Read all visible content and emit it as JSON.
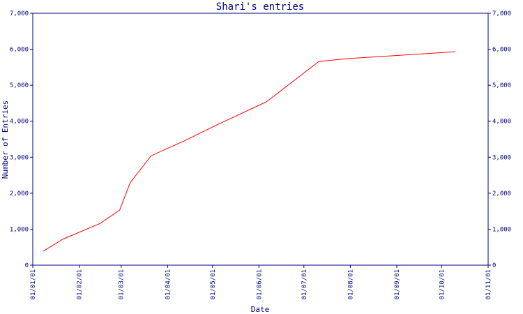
{
  "chart_data": {
    "type": "line",
    "title": "Shari's entries",
    "x_label": "Date",
    "y_label": "Number of Entries",
    "x": [
      "2001-01-08",
      "2001-01-21",
      "2001-02-15",
      "2001-02-28",
      "2001-03-07",
      "2001-03-21",
      "2001-04-12",
      "2001-05-03",
      "2001-06-06",
      "2001-07-11",
      "2001-07-30",
      "2001-10-10"
    ],
    "series": [
      {
        "color": "#ff0000",
        "values": [
          390,
          720,
          1160,
          1530,
          2290,
          3040,
          3450,
          3880,
          4540,
          5660,
          5740,
          5930
        ]
      }
    ],
    "xlim": [
      "2001-01-01",
      "2001-11-01"
    ],
    "xticks": [
      {
        "value": "2001-01-01",
        "label": "01/01/01"
      },
      {
        "value": "2001-02-01",
        "label": "01/02/01"
      },
      {
        "value": "2001-03-01",
        "label": "01/03/01"
      },
      {
        "value": "2001-04-01",
        "label": "01/04/01"
      },
      {
        "value": "2001-05-01",
        "label": "01/05/01"
      },
      {
        "value": "2001-06-01",
        "label": "01/06/01"
      },
      {
        "value": "2001-07-01",
        "label": "01/07/01"
      },
      {
        "value": "2001-08-01",
        "label": "01/08/01"
      },
      {
        "value": "2001-09-01",
        "label": "01/09/01"
      },
      {
        "value": "2001-10-01",
        "label": "01/10/01"
      },
      {
        "value": "2001-11-01",
        "label": "01/11/01"
      }
    ],
    "ylim": [
      0,
      7000
    ],
    "yticks": [
      0,
      {
        "value": 1000,
        "label": "1,000"
      },
      {
        "value": 2000,
        "label": "2,000"
      },
      {
        "value": 3000,
        "label": "3,000"
      },
      {
        "value": 4000,
        "label": "4,000"
      },
      {
        "value": 5000,
        "label": "5,000"
      },
      {
        "value": 6000,
        "label": "6,000"
      },
      {
        "value": 7000,
        "label": "7,000"
      }
    ],
    "axis_color": "#000080"
  }
}
